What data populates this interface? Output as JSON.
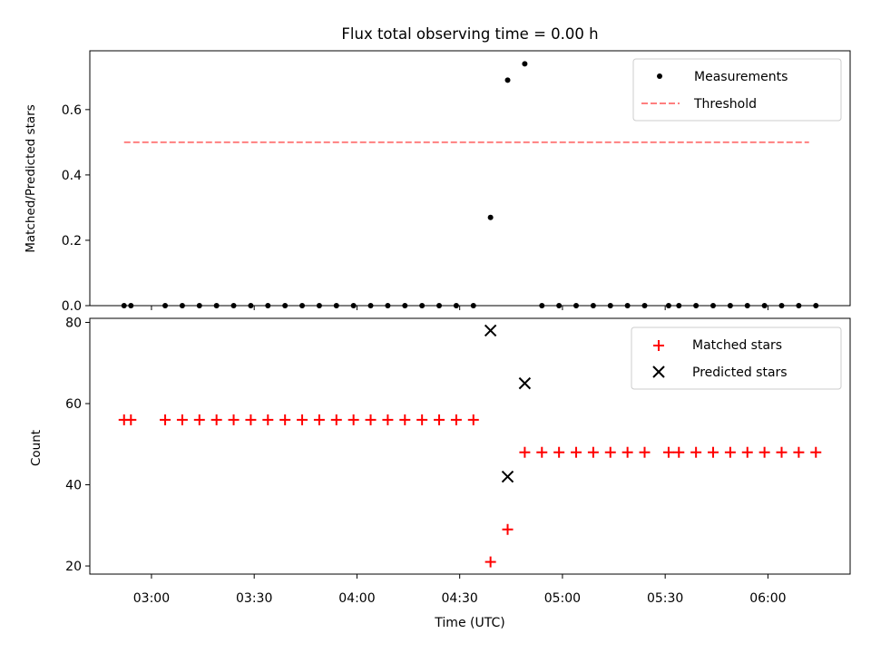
{
  "chart_data": [
    {
      "type": "scatter",
      "title": "Flux total observing time = 0.00 h",
      "xlabel": "",
      "ylabel": "Matched/Predicted stars",
      "ylim": [
        0.0,
        0.78
      ],
      "yticks": [
        0.0,
        0.2,
        0.4,
        0.6
      ],
      "ytick_labels": [
        "0.0",
        "0.2",
        "0.4",
        "0.6"
      ],
      "legend_position": "top-right",
      "series": [
        {
          "name": "Measurements",
          "marker": "dot",
          "color": "#000000",
          "x": [
            "02:52",
            "02:54",
            "03:04",
            "03:09",
            "03:14",
            "03:19",
            "03:24",
            "03:29",
            "03:34",
            "03:39",
            "03:44",
            "03:49",
            "03:54",
            "03:59",
            "04:04",
            "04:09",
            "04:14",
            "04:19",
            "04:24",
            "04:29",
            "04:34",
            "04:39",
            "04:44",
            "04:49",
            "04:54",
            "04:59",
            "05:04",
            "05:09",
            "05:14",
            "05:19",
            "05:24",
            "05:31",
            "05:34",
            "05:39",
            "05:44",
            "05:49",
            "05:54",
            "05:59",
            "06:04",
            "06:09",
            "06:14"
          ],
          "y": [
            0,
            0,
            0,
            0,
            0,
            0,
            0,
            0,
            0,
            0,
            0,
            0,
            0,
            0,
            0,
            0,
            0,
            0,
            0,
            0,
            0,
            0.27,
            0.69,
            0.74,
            0,
            0,
            0,
            0,
            0,
            0,
            0,
            0,
            0,
            0,
            0,
            0,
            0,
            0,
            0,
            0,
            0
          ]
        },
        {
          "name": "Threshold",
          "style": "dashed",
          "color": "#ff7f7f",
          "x": [
            "02:52",
            "06:12"
          ],
          "y": [
            0.5,
            0.5
          ]
        }
      ]
    },
    {
      "type": "scatter",
      "xlabel": "Time (UTC)",
      "ylabel": "Count",
      "ylim": [
        18,
        81
      ],
      "yticks": [
        20,
        40,
        60,
        80
      ],
      "ytick_labels": [
        "20",
        "40",
        "60",
        "80"
      ],
      "xlim": [
        "02:42",
        "06:24"
      ],
      "xticks": [
        "03:00",
        "03:30",
        "04:00",
        "04:30",
        "05:00",
        "05:30",
        "06:00"
      ],
      "legend_position": "top-right",
      "series": [
        {
          "name": "Matched stars",
          "marker": "plus",
          "color": "#ff0000",
          "x": [
            "02:52",
            "02:54",
            "03:04",
            "03:09",
            "03:14",
            "03:19",
            "03:24",
            "03:29",
            "03:34",
            "03:39",
            "03:44",
            "03:49",
            "03:54",
            "03:59",
            "04:04",
            "04:09",
            "04:14",
            "04:19",
            "04:24",
            "04:29",
            "04:34",
            "04:39",
            "04:44",
            "04:49",
            "04:54",
            "04:59",
            "05:04",
            "05:09",
            "05:14",
            "05:19",
            "05:24",
            "05:31",
            "05:34",
            "05:39",
            "05:44",
            "05:49",
            "05:54",
            "05:59",
            "06:04",
            "06:09",
            "06:14"
          ],
          "y": [
            56,
            56,
            56,
            56,
            56,
            56,
            56,
            56,
            56,
            56,
            56,
            56,
            56,
            56,
            56,
            56,
            56,
            56,
            56,
            56,
            56,
            21,
            29,
            48,
            48,
            48,
            48,
            48,
            48,
            48,
            48,
            48,
            48,
            48,
            48,
            48,
            48,
            48,
            48,
            48,
            48
          ]
        },
        {
          "name": "Predicted stars",
          "marker": "x",
          "color": "#000000",
          "x": [
            "04:39",
            "04:44",
            "04:49"
          ],
          "y": [
            78,
            42,
            65
          ]
        }
      ]
    }
  ]
}
